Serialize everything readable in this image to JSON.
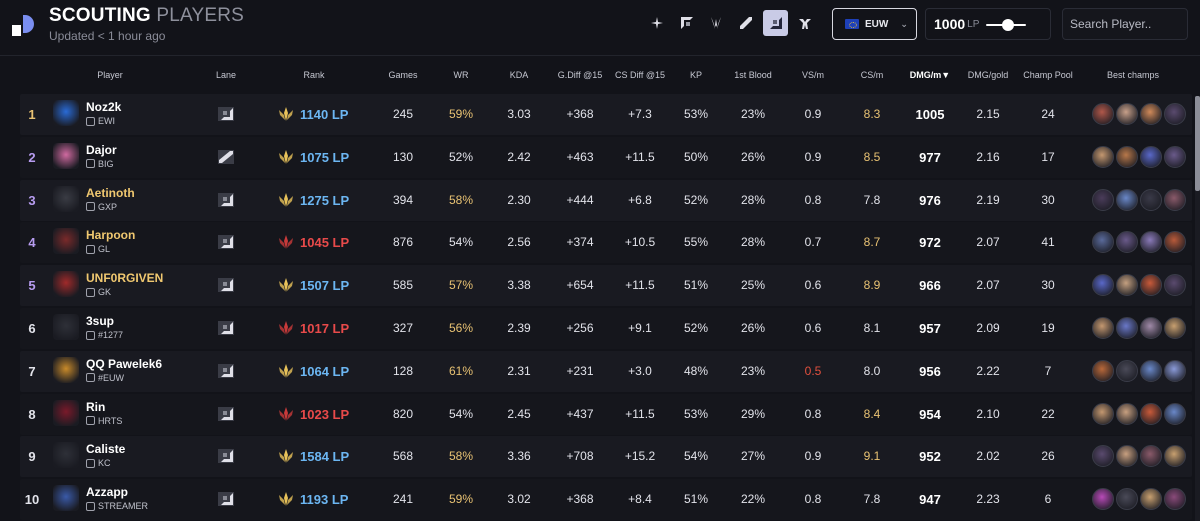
{
  "header": {
    "title_strong": "SCOUTING",
    "title_light": "PLAYERS",
    "subtitle": "Updated < 1 hour ago"
  },
  "lane_filters": [
    {
      "icon": "all-lanes-icon",
      "active": false
    },
    {
      "icon": "top-lane-icon",
      "active": false
    },
    {
      "icon": "jungle-icon",
      "active": false
    },
    {
      "icon": "mid-lane-icon",
      "active": false
    },
    {
      "icon": "bot-lane-icon",
      "active": true
    },
    {
      "icon": "support-icon",
      "active": false
    }
  ],
  "region": {
    "value": "EUW"
  },
  "lp_filter": {
    "value": "1000",
    "unit": "LP",
    "level": 0.6
  },
  "search": {
    "placeholder": "Search Player.."
  },
  "columns": {
    "player": "Player",
    "lane": "Lane",
    "rank": "Rank",
    "games": "Games",
    "wr": "WR",
    "kda": "KDA",
    "gdiff": "G.Diff @15",
    "csdiff": "CS Diff @15",
    "kp": "KP",
    "firstblood": "1st Blood",
    "vsm": "VS/m",
    "csm": "CS/m",
    "dmgm": "DMG/m▼",
    "dmggold": "DMG/gold",
    "pool": "Champ Pool",
    "best": "Best champs"
  },
  "colors": {
    "lp_high": "#6cb6f2",
    "lp_low": "#e84a4a",
    "highlight": "#e8c273",
    "negative": "#e2503e"
  },
  "rows": [
    {
      "rank": "1",
      "rank_color": "#e8c273",
      "name": "Noz2k",
      "team": "EWI",
      "avatar": "#2a6bd6",
      "lane_icon": "bot-lane-icon",
      "lp": "1140 LP",
      "lp_tier": "blue",
      "games": "245",
      "wr": "59%",
      "wr_hi": true,
      "kda": "3.03",
      "gdiff": "+368",
      "csdiff": "+7.3",
      "kp": "53%",
      "fb": "23%",
      "vsm": "0.9",
      "vs_lo": false,
      "csm": "8.3",
      "cs_hi": true,
      "dmgm": "1005",
      "dmggold": "2.15",
      "pool": "24",
      "champs": [
        "#b0584a",
        "#c8a08a",
        "#d08a5a",
        "#5a4a6e"
      ]
    },
    {
      "rank": "2",
      "rank_color": "#b79cf0",
      "name": "Dajor",
      "team": "BIG",
      "avatar": "#d06aa0",
      "lane_icon": "mid-lane-icon",
      "lp": "1075 LP",
      "lp_tier": "blue",
      "games": "130",
      "wr": "52%",
      "wr_hi": false,
      "kda": "2.42",
      "gdiff": "+463",
      "csdiff": "+11.5",
      "kp": "50%",
      "fb": "26%",
      "vsm": "0.9",
      "vs_lo": false,
      "csm": "8.5",
      "cs_hi": true,
      "dmgm": "977",
      "dmggold": "2.16",
      "pool": "17",
      "champs": [
        "#c49870",
        "#b8784a",
        "#5a68c8",
        "#6a5a8a"
      ]
    },
    {
      "rank": "3",
      "rank_color": "#b79cf0",
      "name": "Aetinoth",
      "team": "GXP",
      "avatar": "#3a3c44",
      "lane_icon": "bot-lane-icon",
      "lp": "1275 LP",
      "lp_tier": "blue",
      "games": "394",
      "wr": "58%",
      "wr_hi": true,
      "kda": "2.30",
      "gdiff": "+444",
      "csdiff": "+6.8",
      "kp": "52%",
      "fb": "28%",
      "vsm": "0.8",
      "vs_lo": false,
      "csm": "7.8",
      "cs_hi": false,
      "dmgm": "976",
      "dmggold": "2.19",
      "pool": "30",
      "champs": [
        "#4a3c5a",
        "#6a88c8",
        "#3a3a48",
        "#8a5a6a"
      ]
    },
    {
      "rank": "4",
      "rank_color": "#b79cf0",
      "name": "Harpoon",
      "team": "GL",
      "avatar": "#7a2a2a",
      "lane_icon": "bot-lane-icon",
      "lp": "1045 LP",
      "lp_tier": "red",
      "games": "876",
      "wr": "54%",
      "wr_hi": false,
      "kda": "2.56",
      "gdiff": "+374",
      "csdiff": "+10.5",
      "kp": "55%",
      "fb": "28%",
      "vsm": "0.7",
      "vs_lo": false,
      "csm": "8.7",
      "cs_hi": true,
      "dmgm": "972",
      "dmggold": "2.07",
      "pool": "41",
      "champs": [
        "#5a6a9a",
        "#6a5a8a",
        "#8a7ab8",
        "#b85a3a"
      ]
    },
    {
      "rank": "5",
      "rank_color": "#b79cf0",
      "name": "UNF0RGIVEN",
      "team": "GK",
      "avatar": "#a02a2a",
      "lane_icon": "bot-lane-icon",
      "lp": "1507 LP",
      "lp_tier": "blue",
      "games": "585",
      "wr": "57%",
      "wr_hi": true,
      "kda": "3.38",
      "gdiff": "+654",
      "csdiff": "+11.5",
      "kp": "51%",
      "fb": "25%",
      "vsm": "0.6",
      "vs_lo": false,
      "csm": "8.9",
      "cs_hi": true,
      "dmgm": "966",
      "dmggold": "2.07",
      "pool": "30",
      "champs": [
        "#5a68c8",
        "#c4a080",
        "#c85a3a",
        "#5a4a6e"
      ]
    },
    {
      "rank": "6",
      "rank_color": "#e2e3ea",
      "name": "3sup",
      "team": "#1277",
      "avatar": "#2e3038",
      "lane_icon": "bot-lane-icon",
      "lp": "1017 LP",
      "lp_tier": "red",
      "games": "327",
      "wr": "56%",
      "wr_hi": true,
      "kda": "2.39",
      "gdiff": "+256",
      "csdiff": "+9.1",
      "kp": "52%",
      "fb": "26%",
      "vsm": "0.6",
      "vs_lo": false,
      "csm": "8.1",
      "cs_hi": false,
      "dmgm": "957",
      "dmggold": "2.09",
      "pool": "19",
      "champs": [
        "#c49870",
        "#6a78c8",
        "#a08aa8",
        "#c8a070"
      ]
    },
    {
      "rank": "7",
      "rank_color": "#e2e3ea",
      "name": "QQ Pawelek6",
      "team": "#EUW",
      "avatar": "#c88a2a",
      "lane_icon": "bot-lane-icon",
      "lp": "1064 LP",
      "lp_tier": "blue",
      "games": "128",
      "wr": "61%",
      "wr_hi": true,
      "kda": "2.31",
      "gdiff": "+231",
      "csdiff": "+3.0",
      "kp": "48%",
      "fb": "23%",
      "vsm": "0.5",
      "vs_lo": true,
      "csm": "8.0",
      "cs_hi": false,
      "dmgm": "956",
      "dmggold": "2.22",
      "pool": "7",
      "champs": [
        "#b8683a",
        "#4a4a58",
        "#6a88c8",
        "#8a9ad8"
      ]
    },
    {
      "rank": "8",
      "rank_color": "#e2e3ea",
      "name": "Rin",
      "team": "HRTS",
      "avatar": "#7a1a2a",
      "lane_icon": "bot-lane-icon",
      "lp": "1023 LP",
      "lp_tier": "red",
      "games": "820",
      "wr": "54%",
      "wr_hi": false,
      "kda": "2.45",
      "gdiff": "+437",
      "csdiff": "+11.5",
      "kp": "53%",
      "fb": "29%",
      "vsm": "0.8",
      "vs_lo": false,
      "csm": "8.4",
      "cs_hi": true,
      "dmgm": "954",
      "dmggold": "2.10",
      "pool": "22",
      "champs": [
        "#c49870",
        "#c8a080",
        "#c85a3a",
        "#6a88c8"
      ]
    },
    {
      "rank": "9",
      "rank_color": "#e2e3ea",
      "name": "Caliste",
      "team": "KC",
      "avatar": "#2e3038",
      "lane_icon": "bot-lane-icon",
      "lp": "1584 LP",
      "lp_tier": "blue",
      "games": "568",
      "wr": "58%",
      "wr_hi": true,
      "kda": "3.36",
      "gdiff": "+708",
      "csdiff": "+15.2",
      "kp": "54%",
      "fb": "27%",
      "vsm": "0.9",
      "vs_lo": false,
      "csm": "9.1",
      "cs_hi": true,
      "dmgm": "952",
      "dmggold": "2.02",
      "pool": "26",
      "champs": [
        "#5a4a6e",
        "#c8a080",
        "#8a5a6a",
        "#c8a070"
      ]
    },
    {
      "rank": "10",
      "rank_color": "#e2e3ea",
      "name": "Azzapp",
      "team": "STREAMER",
      "avatar": "#3a5aa8",
      "lane_icon": "bot-lane-icon",
      "lp": "1193 LP",
      "lp_tier": "blue",
      "games": "241",
      "wr": "59%",
      "wr_hi": true,
      "kda": "3.02",
      "gdiff": "+368",
      "csdiff": "+8.4",
      "kp": "51%",
      "fb": "22%",
      "vsm": "0.8",
      "vs_lo": false,
      "csm": "7.8",
      "cs_hi": false,
      "dmgm": "947",
      "dmggold": "2.23",
      "pool": "6",
      "champs": [
        "#b84ab8",
        "#4a4a58",
        "#c8a070",
        "#8a4a7a"
      ]
    }
  ]
}
